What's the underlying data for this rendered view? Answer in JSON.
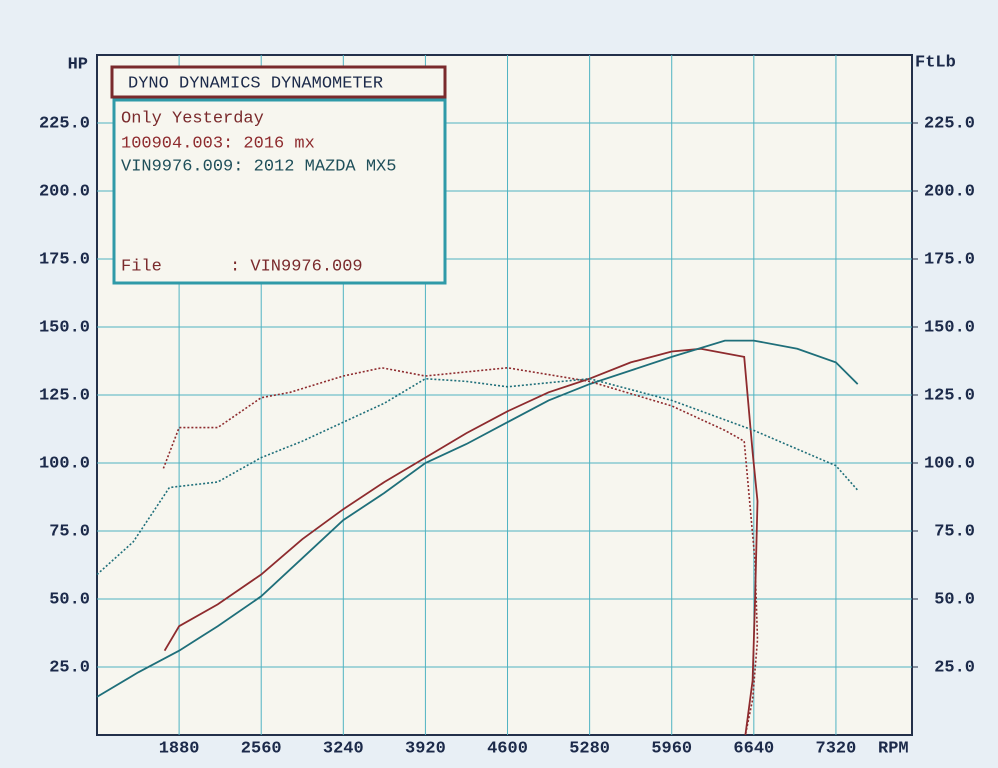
{
  "chart_data": {
    "type": "line",
    "header": "DYNO DYNAMICS DYNAMOMETER",
    "subtitle": "Only Yesterday",
    "file_label": "File",
    "file_value": ": VIN9976.009",
    "ylabel": "HP",
    "y2label": "FtLb",
    "xlabel": "RPM",
    "xlim": [
      1200,
      7950
    ],
    "ylim": [
      0,
      250
    ],
    "y2lim": [
      0,
      250
    ],
    "xticks": [
      1880,
      2560,
      3240,
      3920,
      4600,
      5280,
      5960,
      6640,
      7320
    ],
    "yticks": [
      {
        "value": 25,
        "label": "25.0"
      },
      {
        "value": 50,
        "label": "50.0"
      },
      {
        "value": 75,
        "label": "75.0"
      },
      {
        "value": 100,
        "label": "100.0"
      },
      {
        "value": 125,
        "label": "125.0"
      },
      {
        "value": 150,
        "label": "150.0"
      },
      {
        "value": 175,
        "label": "175.0"
      },
      {
        "value": 200,
        "label": "200.0"
      },
      {
        "value": 225,
        "label": "225.0"
      }
    ],
    "y2ticks": [
      {
        "value": 25,
        "label": "25.0"
      },
      {
        "value": 50,
        "label": "50.0"
      },
      {
        "value": 75,
        "label": "75.0"
      },
      {
        "value": 100,
        "label": "100.0"
      },
      {
        "value": 125,
        "label": "125.0"
      },
      {
        "value": 150,
        "label": "150.0"
      },
      {
        "value": 175,
        "label": "175.0"
      },
      {
        "value": 200,
        "label": "200.0"
      },
      {
        "value": 225,
        "label": "225.0"
      }
    ],
    "grid": true,
    "series": [
      {
        "name": "100904.003: 2016 mx",
        "color": "#8e2b2e",
        "style": "solid",
        "x": [
          1760,
          1880,
          2200,
          2560,
          2900,
          3240,
          3580,
          3920,
          4260,
          4600,
          4940,
          5280,
          5620,
          5960,
          6200,
          6560,
          6630,
          6670,
          6650,
          6630,
          6570
        ],
        "values": [
          31,
          40,
          48,
          59,
          72,
          83,
          93,
          102,
          111,
          119,
          126,
          131,
          137,
          141,
          142,
          139,
          104,
          86,
          49,
          20,
          0
        ]
      },
      {
        "name": "VIN9976.009: 2012 MAZDA MX5",
        "color": "#1f6f7a",
        "style": "solid",
        "x": [
          1200,
          1540,
          1880,
          2200,
          2560,
          2900,
          3240,
          3580,
          3920,
          4260,
          4600,
          4940,
          5280,
          5620,
          5960,
          6400,
          6640,
          7000,
          7320,
          7500
        ],
        "values": [
          14,
          23,
          31,
          40,
          51,
          65,
          79,
          89,
          100,
          107,
          115,
          123,
          129,
          134,
          139,
          145,
          145,
          142,
          137,
          129
        ]
      },
      {
        "name": "100904.003: 2016 mx",
        "color": "#8e2b2e",
        "style": "dotted",
        "axis": "y2",
        "x": [
          1750,
          1880,
          2200,
          2560,
          2800,
          3240,
          3560,
          3920,
          4600,
          5280,
          5960,
          6400,
          6560,
          6650,
          6670,
          6630,
          6570
        ],
        "values": [
          98,
          113,
          113,
          124,
          126,
          132,
          135,
          132,
          135,
          130,
          121,
          112,
          108,
          64,
          35,
          13,
          0
        ]
      },
      {
        "name": "VIN9976.009: 2012 MAZDA MX5",
        "color": "#1f6f7a",
        "style": "dotted",
        "axis": "y2",
        "x": [
          1200,
          1500,
          1800,
          2200,
          2560,
          2900,
          3240,
          3580,
          3920,
          4260,
          4600,
          5280,
          5960,
          6640,
          7320,
          7500
        ],
        "values": [
          59,
          71,
          91,
          93,
          102,
          108,
          115,
          122,
          131,
          130,
          128,
          131,
          123,
          112,
          99,
          90
        ]
      }
    ]
  }
}
